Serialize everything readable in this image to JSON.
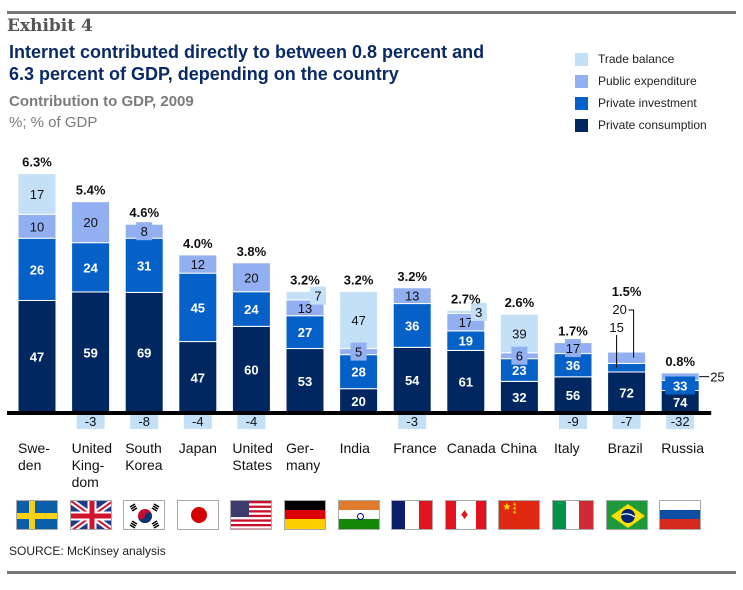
{
  "exhibit_label": "Exhibit 4",
  "title_line1": "Internet contributed directly to between 0.8 percent and",
  "title_line2": "6.3 percent of GDP, depending on the country",
  "subtitle": "Contribution to GDP, 2009",
  "unit": "%; % of GDP",
  "source": "SOURCE: McKinsey analysis",
  "legend": [
    {
      "label": "Trade balance",
      "color": "#c4e0f6"
    },
    {
      "label": "Public expenditure",
      "color": "#92aff2"
    },
    {
      "label": "Private investment",
      "color": "#0561c8"
    },
    {
      "label": "Private consumption",
      "color": "#002760"
    }
  ],
  "chart_data": {
    "type": "bar",
    "stacked": true,
    "title": "Internet contributed directly to between 0.8 percent and 6.3 percent of GDP, depending on the country",
    "subtitle": "Contribution to GDP, 2009",
    "ylabel": "%; % of GDP",
    "categories": [
      "Sweden",
      "United Kingdom",
      "South Korea",
      "Japan",
      "United States",
      "Germany",
      "India",
      "France",
      "Canada",
      "China",
      "Italy",
      "Brazil",
      "Russia"
    ],
    "category_labels": [
      [
        "Swe-",
        "den"
      ],
      [
        "United",
        "King-",
        "dom"
      ],
      [
        "South",
        "Korea"
      ],
      [
        "Japan"
      ],
      [
        "United",
        "States"
      ],
      [
        "Ger-",
        "many"
      ],
      [
        "India"
      ],
      [
        "France"
      ],
      [
        "Canada"
      ],
      [
        "China"
      ],
      [
        "Italy"
      ],
      [
        "Brazil"
      ],
      [
        "Russia"
      ]
    ],
    "totals": [
      "6.3%",
      "5.4%",
      "4.6%",
      "4.0%",
      "3.8%",
      "3.2%",
      "3.2%",
      "3.2%",
      "2.7%",
      "2.6%",
      "1.7%",
      "1.5%",
      "0.8%"
    ],
    "total_values": [
      6.3,
      5.4,
      4.6,
      4.0,
      3.8,
      3.2,
      3.2,
      3.2,
      2.7,
      2.6,
      1.7,
      1.5,
      0.8
    ],
    "series": [
      {
        "name": "Private consumption",
        "color": "#002760",
        "values": [
          47,
          59,
          69,
          47,
          60,
          53,
          20,
          54,
          61,
          32,
          56,
          72,
          74
        ]
      },
      {
        "name": "Private investment",
        "color": "#0561c8",
        "values": [
          26,
          24,
          31,
          45,
          24,
          27,
          28,
          36,
          19,
          23,
          36,
          15,
          33
        ]
      },
      {
        "name": "Public expenditure",
        "color": "#92aff2",
        "values": [
          10,
          20,
          8,
          12,
          20,
          13,
          5,
          13,
          17,
          6,
          17,
          20,
          25
        ]
      },
      {
        "name": "Trade balance",
        "color": "#c4e0f6",
        "values": [
          17,
          -3,
          -8,
          -4,
          -4,
          7,
          47,
          -3,
          3,
          39,
          -9,
          -7,
          -32
        ]
      }
    ],
    "flags": [
      "sweden",
      "uk",
      "south-korea",
      "japan",
      "usa",
      "germany",
      "india",
      "france",
      "canada",
      "china",
      "italy",
      "brazil",
      "russia"
    ]
  }
}
